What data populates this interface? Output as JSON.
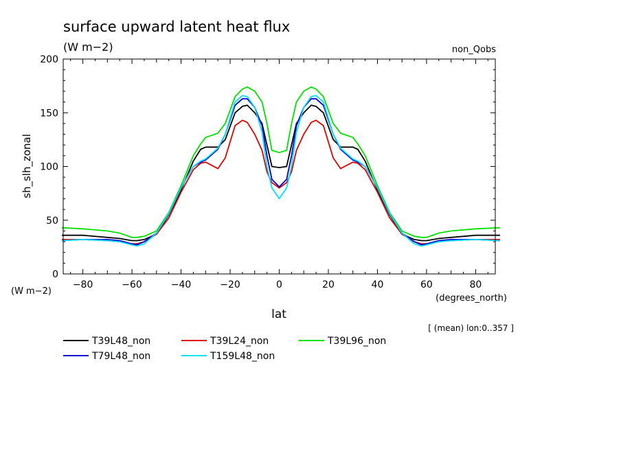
{
  "chart_data": {
    "type": "line",
    "title": "surface upward latent heat flux",
    "subtitle": "(W m−2)",
    "top_right_label": "non_Qobs",
    "xlabel": "lat",
    "x_units": "(degrees_north)",
    "ylabel": "sh_slh_zonal",
    "y_units": "(W m−2)",
    "annotation": "[ (mean) lon:0..357 ]",
    "xlim": [
      -88,
      88
    ],
    "ylim": [
      0,
      200
    ],
    "x_ticks": [
      -80,
      -60,
      -40,
      -20,
      0,
      20,
      40,
      60,
      80
    ],
    "y_ticks": [
      0,
      50,
      100,
      150,
      200
    ],
    "grid": false,
    "legend_position": "bottom",
    "x": [
      -88,
      -80,
      -70,
      -65,
      -60,
      -58,
      -55,
      -50,
      -45,
      -40,
      -35,
      -32,
      -30,
      -25,
      -22,
      -18,
      -15,
      -13,
      -10,
      -7,
      -5,
      -3,
      0,
      3,
      5,
      7,
      10,
      13,
      15,
      18,
      22,
      25,
      30,
      32,
      35,
      40,
      45,
      50,
      55,
      58,
      60,
      65,
      70,
      80,
      88
    ],
    "series": [
      {
        "name": "T39L48_non",
        "color": "#000000",
        "values": [
          36,
          36,
          34,
          33,
          31,
          31,
          32,
          37,
          55,
          78,
          105,
          116,
          118,
          118,
          125,
          150,
          156,
          157,
          150,
          140,
          120,
          100,
          99,
          100,
          120,
          140,
          150,
          157,
          156,
          150,
          125,
          118,
          118,
          116,
          105,
          78,
          55,
          37,
          32,
          31,
          31,
          33,
          34,
          36,
          36
        ]
      },
      {
        "name": "T39L24_non",
        "color": "#e00000",
        "values": [
          32,
          32,
          31,
          30,
          28,
          28,
          30,
          37,
          52,
          76,
          97,
          103,
          104,
          98,
          108,
          138,
          143,
          141,
          130,
          115,
          95,
          85,
          80,
          85,
          95,
          115,
          130,
          141,
          143,
          138,
          108,
          98,
          104,
          103,
          97,
          76,
          52,
          37,
          30,
          28,
          28,
          30,
          31,
          32,
          32
        ]
      },
      {
        "name": "T39L96_non",
        "color": "#00e000",
        "values": [
          43,
          42,
          40,
          38,
          34,
          34,
          35,
          40,
          57,
          82,
          110,
          121,
          127,
          131,
          140,
          165,
          172,
          174,
          170,
          160,
          140,
          115,
          113,
          115,
          140,
          160,
          170,
          174,
          172,
          165,
          140,
          131,
          127,
          121,
          110,
          82,
          57,
          40,
          35,
          34,
          34,
          38,
          40,
          42,
          43
        ]
      },
      {
        "name": "T79L48_non",
        "color": "#0000d0",
        "values": [
          31,
          32,
          32,
          31,
          28,
          27,
          30,
          38,
          56,
          80,
          100,
          104,
          106,
          116,
          130,
          157,
          163,
          163,
          155,
          138,
          110,
          88,
          81,
          88,
          110,
          138,
          155,
          163,
          163,
          157,
          130,
          116,
          106,
          104,
          100,
          80,
          56,
          38,
          30,
          27,
          28,
          31,
          32,
          32,
          31
        ]
      },
      {
        "name": "T159L48_non",
        "color": "#00e0ff",
        "values": [
          31,
          32,
          31,
          30,
          27,
          26,
          28,
          38,
          56,
          80,
          100,
          105,
          107,
          117,
          130,
          160,
          166,
          165,
          155,
          132,
          100,
          80,
          70,
          80,
          100,
          132,
          155,
          165,
          166,
          160,
          130,
          117,
          107,
          105,
          100,
          80,
          56,
          38,
          28,
          26,
          27,
          30,
          31,
          32,
          31
        ]
      }
    ]
  }
}
